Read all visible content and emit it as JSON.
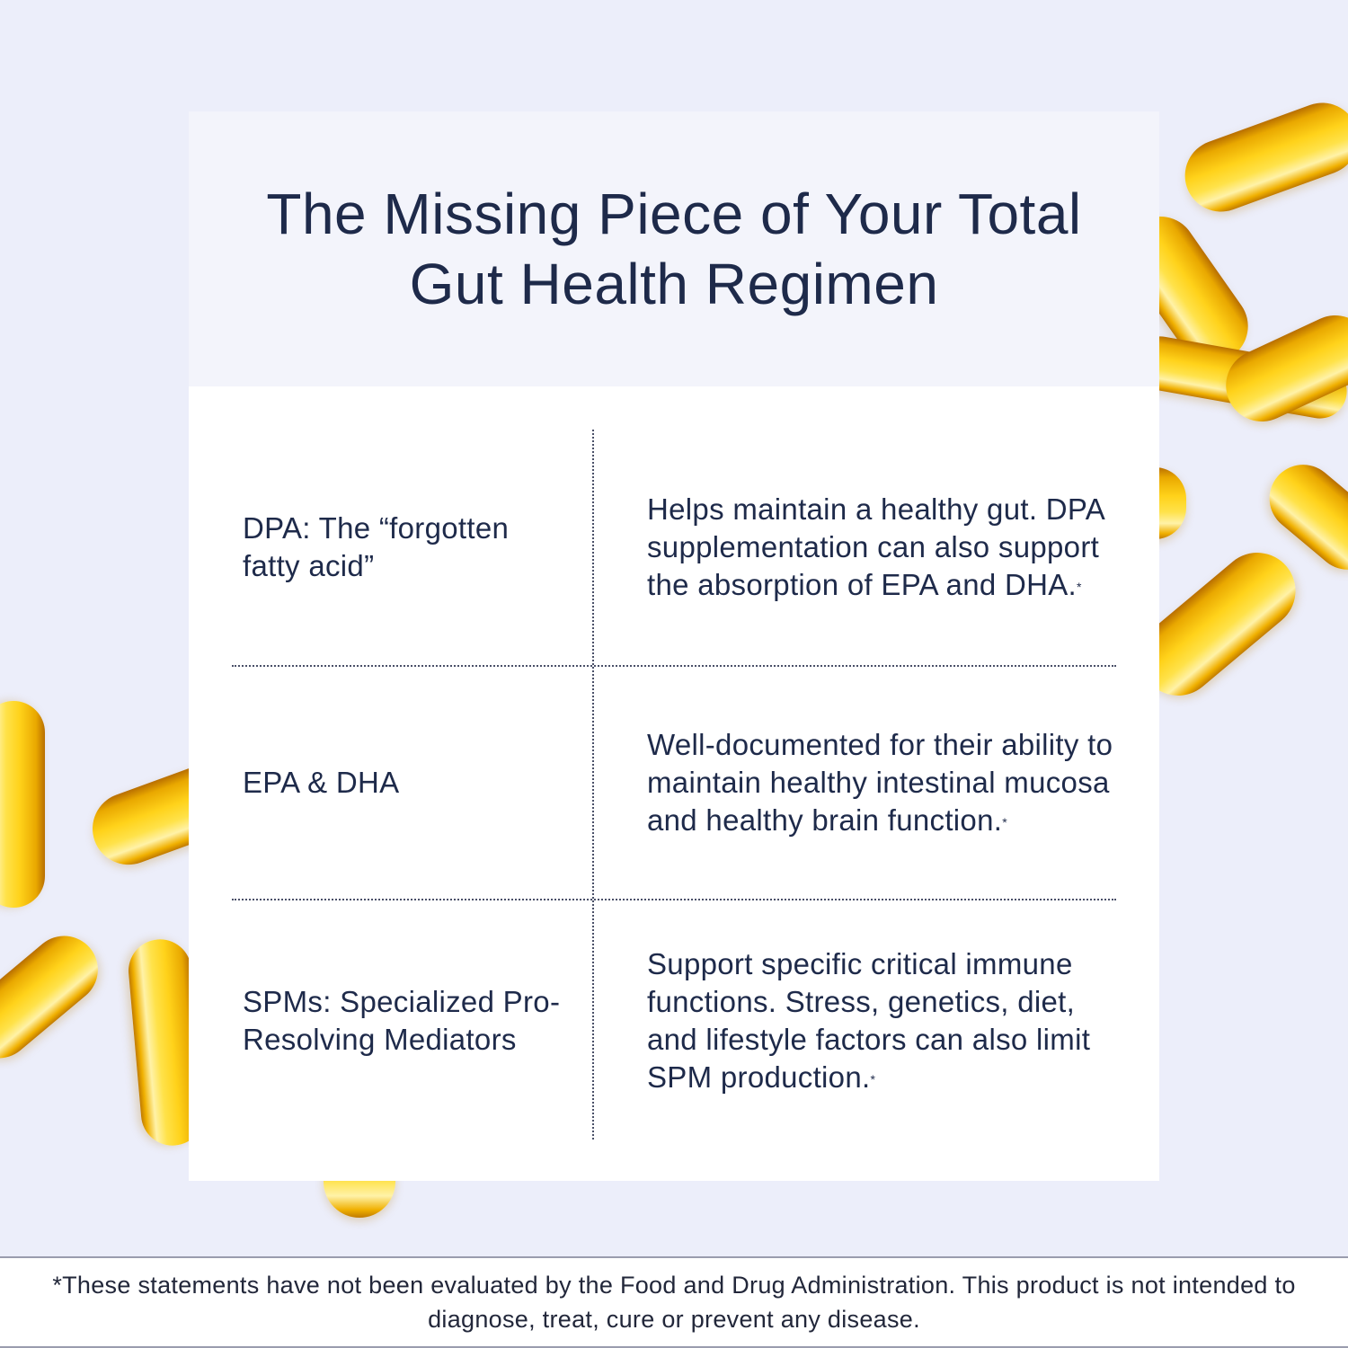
{
  "header": {
    "title": "The Missing Piece of Your Total Gut Health Regimen"
  },
  "rows": [
    {
      "name": "DPA: The “forgotten fatty acid”",
      "description": "Helps maintain a healthy gut. DPA supplementation can also support the absorption of EPA and DHA.",
      "footnote_mark": "*"
    },
    {
      "name": "EPA & DHA",
      "description": "Well-documented for their ability to maintain healthy intestinal mucosa and healthy brain function.",
      "footnote_mark": "*"
    },
    {
      "name": "SPMs: Specialized Pro-Resolving Mediators",
      "description": "Support specific critical immune functions. Stress, genetics, diet, and lifestyle factors can also limit SPM production.",
      "footnote_mark": "*"
    }
  ],
  "footer": {
    "disclaimer": "*These statements have not been evaluated by the Food and Drug Administration. This product is not intended to diagnose, treat, cure or prevent any disease."
  },
  "colors": {
    "background": "#ECEEFA",
    "header_band": "#F3F4FB",
    "text": "#1E2A4A",
    "capsule": "#FFD21A"
  }
}
